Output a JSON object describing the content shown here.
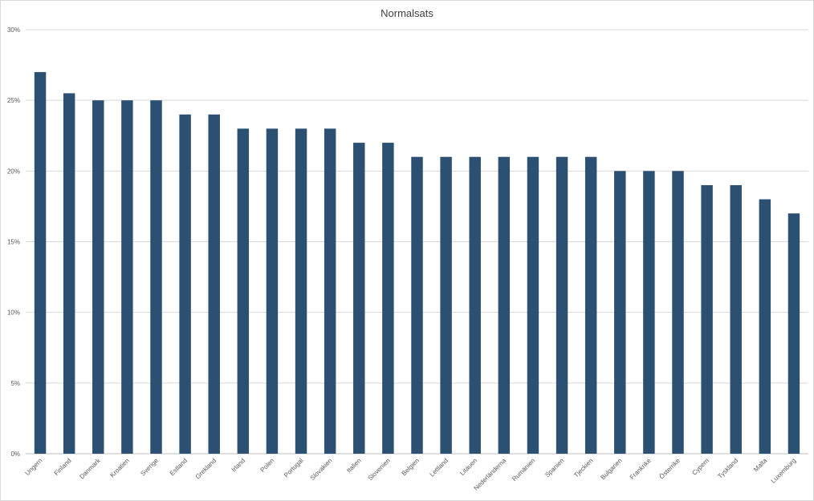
{
  "chart_data": {
    "type": "bar",
    "title": "Normalsats",
    "xlabel": "",
    "ylabel": "",
    "ylim": [
      0,
      30
    ],
    "yticks": [
      "0%",
      "5%",
      "10%",
      "15%",
      "20%",
      "25%",
      "30%"
    ],
    "categories": [
      "Ungern",
      "Finland",
      "Danmark",
      "Kroatien",
      "Sverige",
      "Estland",
      "Grekland",
      "Irland",
      "Polen",
      "Portugal",
      "Slovakien",
      "Italien",
      "Slovenien",
      "Belgien",
      "Lettland",
      "Litauen",
      "Nederländerna",
      "Rumänien",
      "Spanien",
      "Tjeckien",
      "Bulgarien",
      "Frankrike",
      "Österrike",
      "Cypern",
      "Tyskland",
      "Malta",
      "Luxemburg"
    ],
    "values": [
      27,
      25.5,
      25,
      25,
      25,
      24,
      24,
      23,
      23,
      23,
      23,
      22,
      22,
      21,
      21,
      21,
      21,
      21,
      21,
      21,
      20,
      20,
      20,
      19,
      19,
      18,
      17
    ],
    "bar_color": "#2c5072",
    "grid": true,
    "legend": "none"
  }
}
